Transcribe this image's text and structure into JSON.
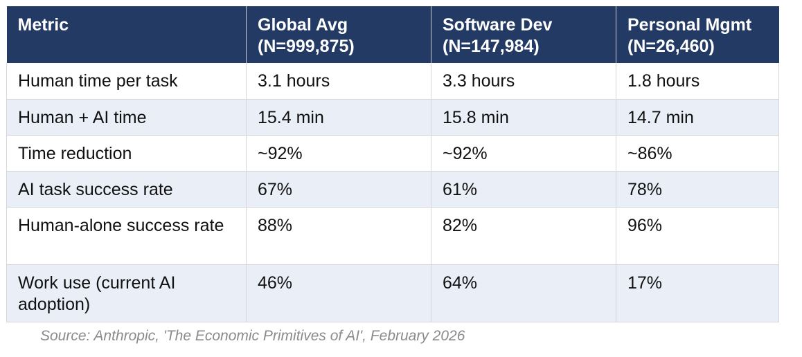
{
  "table": {
    "headers": [
      {
        "title": "Metric",
        "subtitle": ""
      },
      {
        "title": "Global Avg",
        "subtitle": "(N=999,875)"
      },
      {
        "title": "Software Dev",
        "subtitle": "(N=147,984)"
      },
      {
        "title": "Personal Mgmt",
        "subtitle": "(N=26,460)"
      }
    ],
    "rows": [
      {
        "metric": "Human time per task",
        "global": "3.1 hours",
        "software": "3.3 hours",
        "personal": "1.8 hours"
      },
      {
        "metric": "Human + AI time",
        "global": "15.4 min",
        "software": "15.8 min",
        "personal": "14.7 min"
      },
      {
        "metric": "Time reduction",
        "global": "~92%",
        "software": "~92%",
        "personal": "~86%"
      },
      {
        "metric": "AI task success rate",
        "global": "67%",
        "software": "61%",
        "personal": "78%"
      },
      {
        "metric": "Human-alone success rate",
        "global": "88%",
        "software": "82%",
        "personal": "96%"
      },
      {
        "metric": "Work use (current AI adoption)",
        "global": "46%",
        "software": "64%",
        "personal": "17%"
      }
    ]
  },
  "source": "Source: Anthropic, 'The Economic Primitives of AI', February 2026",
  "colors": {
    "header_bg": "#233a64",
    "header_text": "#ffffff",
    "stripe": "#e9eef7",
    "source_text": "#8a8a8a"
  }
}
